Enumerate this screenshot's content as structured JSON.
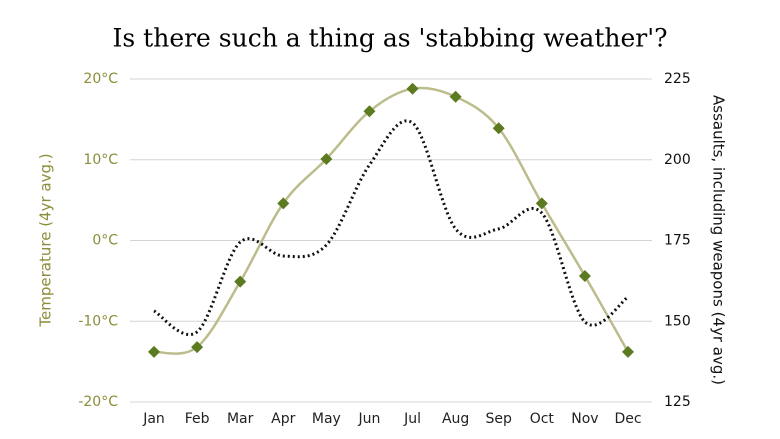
{
  "chart_data": {
    "type": "line",
    "title": "Is there such a thing as 'stabbing weather'?",
    "y_label": "Temperature (4yr avg.)",
    "y2_label": "Assaults, including weapons (4yr avg.)",
    "categories": [
      "Jan",
      "Feb",
      "Mar",
      "Apr",
      "May",
      "Jun",
      "Jul",
      "Aug",
      "Sep",
      "Oct",
      "Nov",
      "Dec"
    ],
    "series": [
      {
        "color": "#5c7a1f",
        "line_color": "#bcbc8c",
        "style": "solid",
        "markers": true,
        "values": [
          -13.8,
          -13.2,
          -5.1,
          4.6,
          10.1,
          16.0,
          18.8,
          17.8,
          13.9,
          4.6,
          -4.4,
          -13.8
        ]
      },
      {
        "color": "#111111",
        "style": "dotted",
        "markers": false,
        "axis": "y2",
        "values": [
          153.2,
          146.7,
          174.5,
          170.2,
          173.6,
          198.4,
          211.4,
          178.6,
          178.6,
          183.5,
          149.8,
          157.5
        ]
      }
    ],
    "ylim": [
      -20,
      20
    ],
    "yticks": [
      {
        "value": -20,
        "label": "-20°C"
      },
      {
        "value": -10,
        "label": "-10°C"
      },
      {
        "value": 0,
        "label": "0°C"
      },
      {
        "value": 10,
        "label": "10°C"
      },
      {
        "value": 20,
        "label": "20°C"
      }
    ],
    "y2lim": [
      125,
      225
    ],
    "y2ticks": [
      125,
      150,
      175,
      200,
      225
    ],
    "grid": true,
    "tick_color": "#8c8c3a"
  }
}
